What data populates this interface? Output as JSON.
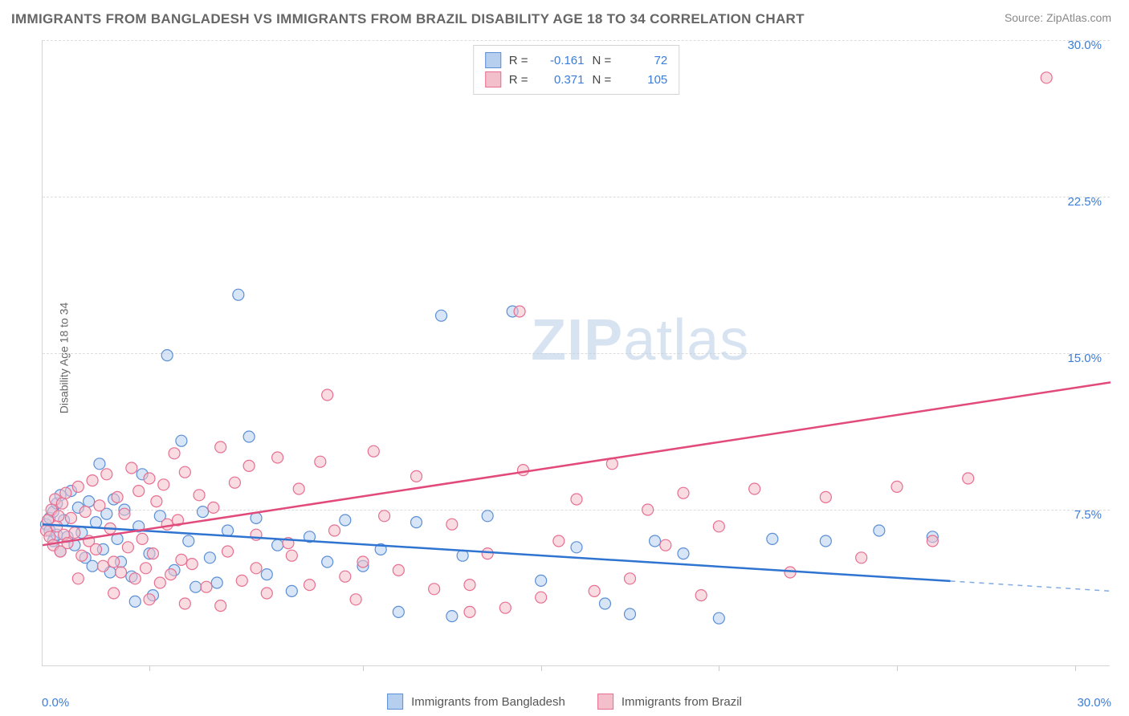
{
  "title": "IMMIGRANTS FROM BANGLADESH VS IMMIGRANTS FROM BRAZIL DISABILITY AGE 18 TO 34 CORRELATION CHART",
  "source_label": "Source:",
  "source_name": "ZipAtlas.com",
  "y_axis_label": "Disability Age 18 to 34",
  "watermark_zip": "ZIP",
  "watermark_atlas": "atlas",
  "chart": {
    "type": "scatter",
    "xlim": [
      0,
      30
    ],
    "ylim": [
      0,
      30
    ],
    "y_ticks": [
      7.5,
      15.0,
      22.5,
      30.0
    ],
    "y_tick_labels": [
      "7.5%",
      "15.0%",
      "22.5%",
      "30.0%"
    ],
    "x_min_label": "0.0%",
    "x_max_label": "30.0%",
    "x_tick_positions": [
      3,
      9,
      14,
      19,
      24,
      29
    ],
    "axis_label_color": "#3b7dd8",
    "background_color": "#ffffff",
    "grid_color": "#dddddd",
    "marker_radius": 7,
    "marker_stroke_width": 1.2,
    "series": [
      {
        "name": "Immigrants from Bangladesh",
        "short": "bangladesh",
        "fill": "#b6cfef",
        "stroke": "#5b8fd6",
        "line_color": "#2e74d0",
        "fill_opacity": 0.55,
        "R": "-0.161",
        "N": "72",
        "trend": {
          "x1": 0,
          "y1": 6.8,
          "x2": 30,
          "y2": 3.6,
          "solid_until_x": 25.5
        },
        "points": [
          [
            0.1,
            6.8
          ],
          [
            0.2,
            7.1
          ],
          [
            0.2,
            6.5
          ],
          [
            0.3,
            7.4
          ],
          [
            0.3,
            6.0
          ],
          [
            0.4,
            7.8
          ],
          [
            0.4,
            6.3
          ],
          [
            0.5,
            8.2
          ],
          [
            0.5,
            5.5
          ],
          [
            0.6,
            7.0
          ],
          [
            0.7,
            6.2
          ],
          [
            0.8,
            8.4
          ],
          [
            0.9,
            5.8
          ],
          [
            1.0,
            7.6
          ],
          [
            1.1,
            6.4
          ],
          [
            1.2,
            5.2
          ],
          [
            1.3,
            7.9
          ],
          [
            1.4,
            4.8
          ],
          [
            1.5,
            6.9
          ],
          [
            1.6,
            9.7
          ],
          [
            1.7,
            5.6
          ],
          [
            1.8,
            7.3
          ],
          [
            1.9,
            4.5
          ],
          [
            2.0,
            8.0
          ],
          [
            2.1,
            6.1
          ],
          [
            2.2,
            5.0
          ],
          [
            2.3,
            7.5
          ],
          [
            2.5,
            4.3
          ],
          [
            2.6,
            3.1
          ],
          [
            2.7,
            6.7
          ],
          [
            2.8,
            9.2
          ],
          [
            3.0,
            5.4
          ],
          [
            3.1,
            3.4
          ],
          [
            3.3,
            7.2
          ],
          [
            3.5,
            14.9
          ],
          [
            3.7,
            4.6
          ],
          [
            3.9,
            10.8
          ],
          [
            4.1,
            6.0
          ],
          [
            4.3,
            3.8
          ],
          [
            4.5,
            7.4
          ],
          [
            4.7,
            5.2
          ],
          [
            4.9,
            4.0
          ],
          [
            5.2,
            6.5
          ],
          [
            5.5,
            17.8
          ],
          [
            5.8,
            11.0
          ],
          [
            6.0,
            7.1
          ],
          [
            6.3,
            4.4
          ],
          [
            6.6,
            5.8
          ],
          [
            7.0,
            3.6
          ],
          [
            7.5,
            6.2
          ],
          [
            8.0,
            5.0
          ],
          [
            8.5,
            7.0
          ],
          [
            9.0,
            4.8
          ],
          [
            9.5,
            5.6
          ],
          [
            10.0,
            2.6
          ],
          [
            10.5,
            6.9
          ],
          [
            11.2,
            16.8
          ],
          [
            11.8,
            5.3
          ],
          [
            12.5,
            7.2
          ],
          [
            13.2,
            17.0
          ],
          [
            14.0,
            4.1
          ],
          [
            15.0,
            5.7
          ],
          [
            15.8,
            3.0
          ],
          [
            16.5,
            2.5
          ],
          [
            17.2,
            6.0
          ],
          [
            18.0,
            5.4
          ],
          [
            19.0,
            2.3
          ],
          [
            20.5,
            6.1
          ],
          [
            22.0,
            6.0
          ],
          [
            23.5,
            6.5
          ],
          [
            25.0,
            6.2
          ],
          [
            11.5,
            2.4
          ]
        ]
      },
      {
        "name": "Immigrants from Brazil",
        "short": "brazil",
        "fill": "#f3bfcb",
        "stroke": "#e76f91",
        "line_color": "#e14a7a",
        "fill_opacity": 0.55,
        "R": "0.371",
        "N": "105",
        "trend": {
          "x1": 0,
          "y1": 5.8,
          "x2": 30,
          "y2": 13.6,
          "solid_until_x": 30
        },
        "points": [
          [
            0.1,
            6.5
          ],
          [
            0.15,
            7.0
          ],
          [
            0.2,
            6.2
          ],
          [
            0.25,
            7.5
          ],
          [
            0.3,
            5.8
          ],
          [
            0.35,
            8.0
          ],
          [
            0.4,
            6.7
          ],
          [
            0.45,
            7.2
          ],
          [
            0.5,
            5.5
          ],
          [
            0.55,
            7.8
          ],
          [
            0.6,
            6.3
          ],
          [
            0.65,
            8.3
          ],
          [
            0.7,
            5.9
          ],
          [
            0.8,
            7.1
          ],
          [
            0.9,
            6.4
          ],
          [
            1.0,
            8.6
          ],
          [
            1.1,
            5.3
          ],
          [
            1.2,
            7.4
          ],
          [
            1.3,
            6.0
          ],
          [
            1.4,
            8.9
          ],
          [
            1.5,
            5.6
          ],
          [
            1.6,
            7.7
          ],
          [
            1.7,
            4.8
          ],
          [
            1.8,
            9.2
          ],
          [
            1.9,
            6.6
          ],
          [
            2.0,
            5.0
          ],
          [
            2.1,
            8.1
          ],
          [
            2.2,
            4.5
          ],
          [
            2.3,
            7.3
          ],
          [
            2.4,
            5.7
          ],
          [
            2.5,
            9.5
          ],
          [
            2.6,
            4.2
          ],
          [
            2.7,
            8.4
          ],
          [
            2.8,
            6.1
          ],
          [
            2.9,
            4.7
          ],
          [
            3.0,
            9.0
          ],
          [
            3.1,
            5.4
          ],
          [
            3.2,
            7.9
          ],
          [
            3.3,
            4.0
          ],
          [
            3.4,
            8.7
          ],
          [
            3.5,
            6.8
          ],
          [
            3.6,
            4.4
          ],
          [
            3.7,
            10.2
          ],
          [
            3.8,
            7.0
          ],
          [
            3.9,
            5.1
          ],
          [
            4.0,
            9.3
          ],
          [
            4.2,
            4.9
          ],
          [
            4.4,
            8.2
          ],
          [
            4.6,
            3.8
          ],
          [
            4.8,
            7.6
          ],
          [
            5.0,
            10.5
          ],
          [
            5.2,
            5.5
          ],
          [
            5.4,
            8.8
          ],
          [
            5.6,
            4.1
          ],
          [
            5.8,
            9.6
          ],
          [
            6.0,
            6.3
          ],
          [
            6.3,
            3.5
          ],
          [
            6.6,
            10.0
          ],
          [
            6.9,
            5.9
          ],
          [
            7.2,
            8.5
          ],
          [
            7.5,
            3.9
          ],
          [
            7.8,
            9.8
          ],
          [
            8.0,
            13.0
          ],
          [
            8.2,
            6.5
          ],
          [
            8.5,
            4.3
          ],
          [
            8.8,
            3.2
          ],
          [
            9.0,
            5.0
          ],
          [
            9.3,
            10.3
          ],
          [
            9.6,
            7.2
          ],
          [
            10.0,
            4.6
          ],
          [
            10.5,
            9.1
          ],
          [
            11.0,
            3.7
          ],
          [
            11.5,
            6.8
          ],
          [
            12.0,
            3.9
          ],
          [
            12.5,
            5.4
          ],
          [
            13.0,
            2.8
          ],
          [
            13.4,
            17.0
          ],
          [
            13.5,
            9.4
          ],
          [
            14.0,
            3.3
          ],
          [
            14.5,
            6.0
          ],
          [
            15.0,
            8.0
          ],
          [
            15.5,
            3.6
          ],
          [
            16.0,
            9.7
          ],
          [
            16.5,
            4.2
          ],
          [
            17.0,
            7.5
          ],
          [
            17.5,
            5.8
          ],
          [
            18.0,
            8.3
          ],
          [
            18.5,
            3.4
          ],
          [
            19.0,
            6.7
          ],
          [
            20.0,
            8.5
          ],
          [
            21.0,
            4.5
          ],
          [
            22.0,
            8.1
          ],
          [
            23.0,
            5.2
          ],
          [
            24.0,
            8.6
          ],
          [
            25.0,
            6.0
          ],
          [
            26.0,
            9.0
          ],
          [
            28.2,
            28.2
          ],
          [
            1.0,
            4.2
          ],
          [
            2.0,
            3.5
          ],
          [
            3.0,
            3.2
          ],
          [
            4.0,
            3.0
          ],
          [
            5.0,
            2.9
          ],
          [
            6.0,
            4.7
          ],
          [
            7.0,
            5.3
          ],
          [
            12.0,
            2.6
          ]
        ]
      }
    ]
  },
  "legend_top": {
    "r_label": "R =",
    "n_label": "N ="
  }
}
